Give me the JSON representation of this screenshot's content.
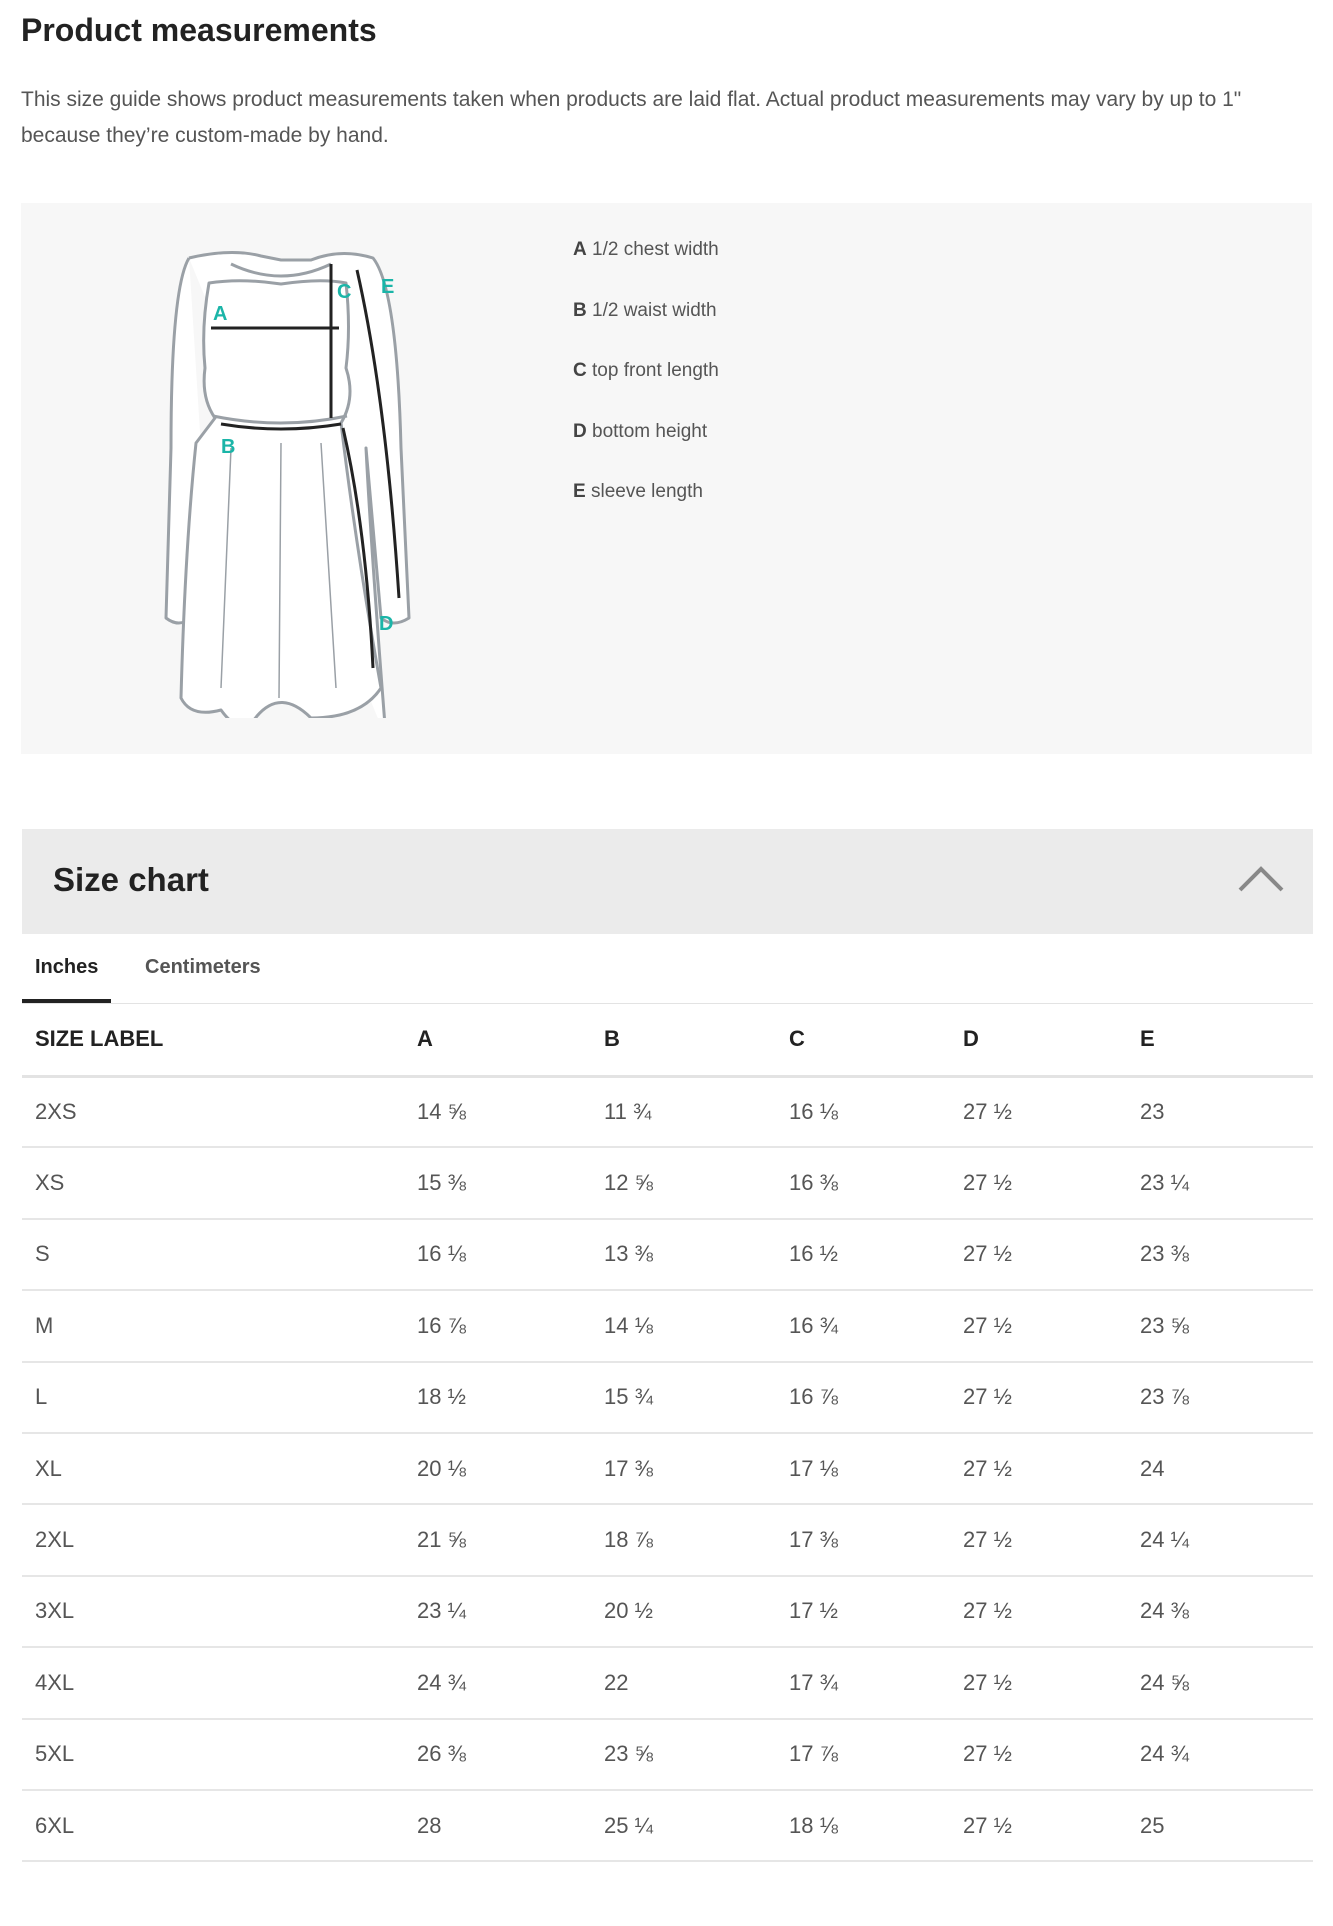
{
  "page": {
    "title": "Product measurements",
    "intro": "This size guide shows product measurements taken when products are laid flat. Actual product measurements may vary by up to 1\" because they’re custom-made by hand."
  },
  "diagram": {
    "accent_color": "#1bb5a8",
    "labels": [
      "A",
      "B",
      "C",
      "D",
      "E"
    ],
    "legend": [
      {
        "key": "A",
        "text": "1/2 chest width"
      },
      {
        "key": "B",
        "text": "1/2 waist width"
      },
      {
        "key": "C",
        "text": "top front length"
      },
      {
        "key": "D",
        "text": "bottom height"
      },
      {
        "key": "E",
        "text": "sleeve length"
      }
    ]
  },
  "size_chart": {
    "title": "Size chart",
    "toggle_icon": "chevron-up-icon",
    "tabs": [
      {
        "label": "Inches",
        "active": true
      },
      {
        "label": "Centimeters",
        "active": false
      }
    ],
    "columns": [
      "SIZE LABEL",
      "A",
      "B",
      "C",
      "D",
      "E"
    ],
    "rows": [
      [
        "2XS",
        "14 ⅝",
        "11 ¾",
        "16 ⅛",
        "27 ½",
        "23"
      ],
      [
        "XS",
        "15 ⅜",
        "12 ⅝",
        "16 ⅜",
        "27 ½",
        "23 ¼"
      ],
      [
        "S",
        "16 ⅛",
        "13 ⅜",
        "16 ½",
        "27 ½",
        "23 ⅜"
      ],
      [
        "M",
        "16 ⅞",
        "14 ⅛",
        "16 ¾",
        "27 ½",
        "23 ⅝"
      ],
      [
        "L",
        "18 ½",
        "15 ¾",
        "16 ⅞",
        "27 ½",
        "23 ⅞"
      ],
      [
        "XL",
        "20 ⅛",
        "17 ⅜",
        "17 ⅛",
        "27 ½",
        "24"
      ],
      [
        "2XL",
        "21 ⅝",
        "18 ⅞",
        "17 ⅜",
        "27 ½",
        "24 ¼"
      ],
      [
        "3XL",
        "23 ¼",
        "20 ½",
        "17 ½",
        "27 ½",
        "24 ⅜"
      ],
      [
        "4XL",
        "24 ¾",
        "22",
        "17 ¾",
        "27 ½",
        "24 ⅝"
      ],
      [
        "5XL",
        "26 ⅜",
        "23 ⅝",
        "17 ⅞",
        "27 ½",
        "24 ¾"
      ],
      [
        "6XL",
        "28",
        "25 ¼",
        "18 ⅛",
        "27 ½",
        "25"
      ]
    ]
  }
}
